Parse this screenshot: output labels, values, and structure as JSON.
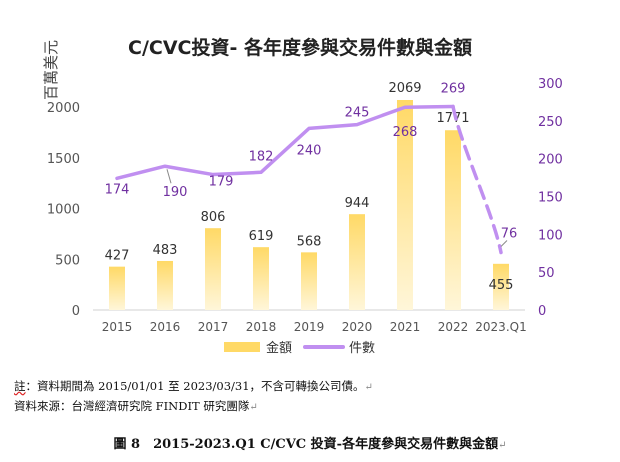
{
  "chart_data": {
    "type": "bar+line",
    "title": "C/CVC投資- 各年度參與交易件數與金額",
    "categories": [
      "2015",
      "2016",
      "2017",
      "2018",
      "2019",
      "2020",
      "2021",
      "2022",
      "2023.Q1"
    ],
    "series": [
      {
        "name": "金額",
        "type": "bar",
        "axis": "left",
        "values": [
          427,
          483,
          806,
          619,
          568,
          944,
          2069,
          1771,
          455
        ]
      },
      {
        "name": "件數",
        "type": "line",
        "axis": "right",
        "values": [
          174,
          190,
          179,
          182,
          240,
          245,
          268,
          269,
          76
        ]
      }
    ],
    "ylabel_left": "百萬美元",
    "ylim_left": [
      0,
      2000
    ],
    "yticks_left": [
      "0",
      "500",
      "1000",
      "1500",
      "2000"
    ],
    "ylim_right": [
      0,
      300
    ],
    "yticks_right": [
      "0",
      "50",
      "100",
      "150",
      "200",
      "250",
      "300"
    ],
    "legend_position": "bottom",
    "colors": {
      "bar": "#ffd966",
      "line": "#c08ff0",
      "count_label": "#7030a0",
      "text": "#333333"
    }
  },
  "notes": {
    "note1_prefix": "註",
    "note1_rest": "：資料期間為 2015/01/01 至 2023/03/31，不含可轉換公司債。",
    "note2": "資料來源：台灣經濟研究院 FINDIT 研究團隊",
    "return_mark": "↵"
  },
  "caption": "圖 8　2015-2023.Q1 C/CVC 投資-各年度參與交易件數與金額"
}
